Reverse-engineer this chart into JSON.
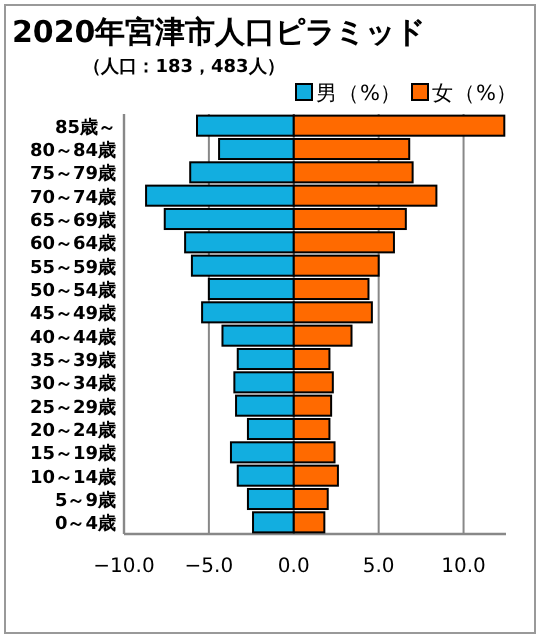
{
  "chart_data": {
    "type": "bar",
    "orientation": "horizontal",
    "title": "2020年宮津市人口ピラミッド",
    "subtitle": "（人口：183，483人）",
    "stacked": true,
    "categories": [
      "85歳～",
      "80～84歳",
      "75～79歳",
      "70～74歳",
      "65～69歳",
      "60～64歳",
      "55～59歳",
      "50～54歳",
      "45～49歳",
      "40～44歳",
      "35～39歳",
      "30～34歳",
      "25～29歳",
      "20～24歳",
      "15～19歳",
      "10～14歳",
      "5～9歳",
      "0～4歳"
    ],
    "series": [
      {
        "name": "男（%）",
        "color": "#12aee0",
        "values": [
          -5.7,
          -4.4,
          -6.1,
          -8.7,
          -7.6,
          -6.4,
          -6.0,
          -5.0,
          -5.4,
          -4.2,
          -3.3,
          -3.5,
          -3.4,
          -2.7,
          -3.7,
          -3.3,
          -2.7,
          -2.4
        ]
      },
      {
        "name": "女（%）",
        "color": "#ff6a00",
        "values": [
          12.4,
          6.8,
          7.0,
          8.4,
          6.6,
          5.9,
          5.0,
          4.4,
          4.6,
          3.4,
          2.1,
          2.3,
          2.2,
          2.1,
          2.4,
          2.6,
          2.0,
          1.8
        ]
      }
    ],
    "xlim": [
      -10,
      12.5
    ],
    "xticks": [
      {
        "value": -10,
        "label": "−10.0"
      },
      {
        "value": -5,
        "label": "−5.0"
      },
      {
        "value": 0,
        "label": "0.0"
      },
      {
        "value": 5,
        "label": "5.0"
      },
      {
        "value": 10,
        "label": "10.0"
      }
    ],
    "grid": "x",
    "legend": "top right"
  }
}
